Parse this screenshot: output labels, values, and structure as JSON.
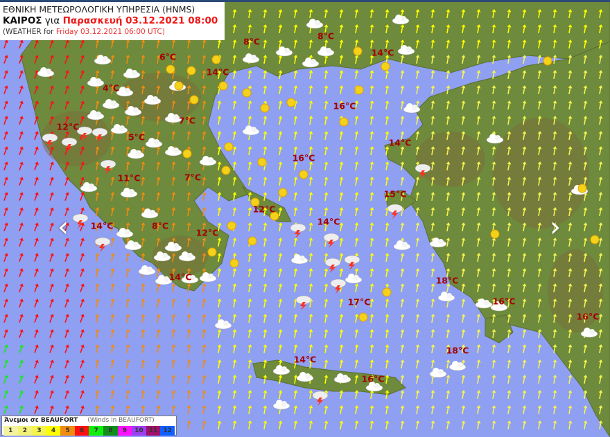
{
  "header": {
    "line1": "ΕΘΝΙΚΗ ΜΕΤΕΩΡΟΛΟΓΙΚΗ ΥΠΗΡΕΣΙΑ (HNMS)",
    "line2_prefix": "ΚΑΙΡΟΣ",
    "line2_mid": "για",
    "line2_date": "Παρασκευή 03.12.2021 08:00",
    "line3_prefix": "(WEATHER for",
    "line3_date": "Friday 03.12.2021 06:00 UTC)"
  },
  "temperatures": [
    "8°C",
    "8°C",
    "6°C",
    "14°C",
    "14°C",
    "4°C",
    "16°C",
    "7°C",
    "12°C",
    "5°C",
    "14°C",
    "16°C",
    "11°C",
    "7°C",
    "15°C",
    "12°C",
    "14°C",
    "8°C",
    "14°C",
    "12°C",
    "14°C",
    "18°C",
    "17°C",
    "16°C",
    "16°C",
    "18°C",
    "14°C",
    "16°C"
  ],
  "nav": {
    "prev": "‹",
    "next": "›",
    "prev_icon": "chevron-left-icon",
    "next_icon": "chevron-right-icon"
  },
  "legend": {
    "title": "Άνεμοι σε BEAUFORT",
    "subtitle": "(Winds in BEAUFORT)",
    "scale": [
      {
        "label": "1",
        "color": "#f4f4a0"
      },
      {
        "label": "2",
        "color": "#f2f27a"
      },
      {
        "label": "3",
        "color": "#f4f450"
      },
      {
        "label": "4",
        "color": "#ffff00"
      },
      {
        "label": "5",
        "color": "#f08c10"
      },
      {
        "label": "6",
        "color": "#ff1010"
      },
      {
        "label": "7",
        "color": "#10ee10"
      },
      {
        "label": "8",
        "color": "#10901a"
      },
      {
        "label": "9",
        "color": "#ff10ff"
      },
      {
        "label": "10",
        "color": "#9b40f0"
      },
      {
        "label": "11",
        "color": "#a0106a"
      },
      {
        "label": "12",
        "color": "#1060ff"
      }
    ]
  },
  "colors": {
    "sea": "#8f9ff2",
    "land": "#6f8a3a",
    "temperature": "#a40000"
  }
}
